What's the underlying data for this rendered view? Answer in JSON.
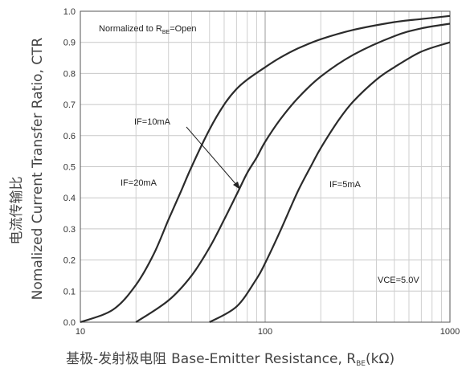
{
  "chart_data": {
    "type": "line",
    "xscale": "log",
    "xlim": [
      10,
      1000
    ],
    "ylim": [
      0.0,
      1.0
    ],
    "grid": true,
    "x_ticks": [
      "10",
      "100",
      "1000"
    ],
    "y_ticks": [
      "0.0",
      "0.1",
      "0.2",
      "0.3",
      "0.4",
      "0.5",
      "0.6",
      "0.7",
      "0.8",
      "0.9",
      "1.0"
    ],
    "xlabel": {
      "cn": "基极-发射极电阻",
      "main": "Base-Emitter Resistance, R",
      "sub": "BE",
      "unit": "(kΩ)"
    },
    "ylabel": {
      "cn": "电流传输比",
      "main": "Nomalized Current Transfer Ratio, CTR"
    },
    "note": {
      "prefix": "Normalized to R",
      "sub": "BE",
      "suffix": "=Open"
    },
    "condition": "VCE=5.0V",
    "series": [
      {
        "name": "IF=20mA",
        "x": [
          10,
          15,
          20,
          25,
          30,
          35,
          40,
          50,
          60,
          70,
          80,
          100,
          120,
          150,
          200,
          300,
          500,
          700,
          1000
        ],
        "y": [
          0.0,
          0.04,
          0.12,
          0.22,
          0.33,
          0.42,
          0.5,
          0.62,
          0.7,
          0.75,
          0.78,
          0.82,
          0.85,
          0.88,
          0.91,
          0.94,
          0.965,
          0.975,
          0.985
        ]
      },
      {
        "name": "IF=10mA",
        "x": [
          20,
          30,
          40,
          50,
          60,
          70,
          80,
          90,
          100,
          120,
          150,
          200,
          300,
          500,
          700,
          1000
        ],
        "y": [
          0.0,
          0.07,
          0.15,
          0.24,
          0.33,
          0.41,
          0.48,
          0.53,
          0.58,
          0.65,
          0.72,
          0.79,
          0.86,
          0.92,
          0.945,
          0.96
        ]
      },
      {
        "name": "IF=5mA",
        "x": [
          50,
          70,
          90,
          100,
          120,
          150,
          180,
          200,
          250,
          300,
          400,
          500,
          700,
          1000
        ],
        "y": [
          0.0,
          0.05,
          0.14,
          0.19,
          0.29,
          0.42,
          0.51,
          0.56,
          0.65,
          0.71,
          0.78,
          0.82,
          0.87,
          0.9
        ]
      }
    ],
    "annotations": [
      "IF=20mA",
      "IF=10mA",
      "IF=5mA"
    ]
  }
}
